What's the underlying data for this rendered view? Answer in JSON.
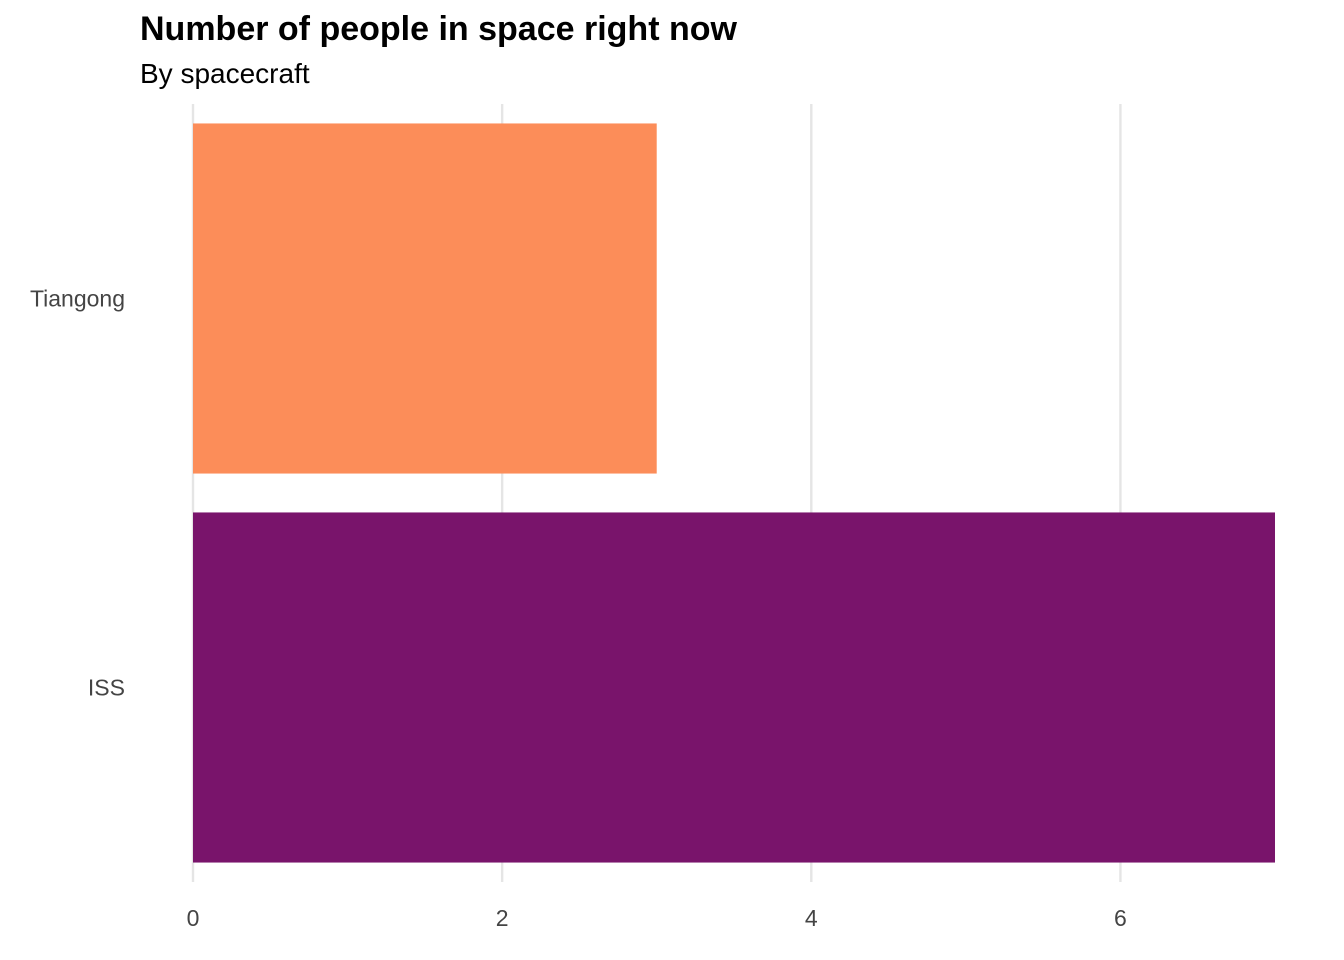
{
  "chart_data": {
    "type": "bar",
    "orientation": "horizontal",
    "title": "Number of people in space right now",
    "subtitle": "By spacecraft",
    "xlabel": "",
    "ylabel": "",
    "categories": [
      "Tiangong",
      "ISS"
    ],
    "values": [
      3,
      7
    ],
    "colors": [
      "#fc8d59",
      "#79146b"
    ],
    "xlim": [
      0,
      7
    ],
    "x_ticks": [
      0,
      2,
      4,
      6
    ],
    "x_tick_labels": [
      "0",
      "2",
      "4",
      "6"
    ],
    "grid": "vertical major gridlines",
    "legend": "none"
  }
}
